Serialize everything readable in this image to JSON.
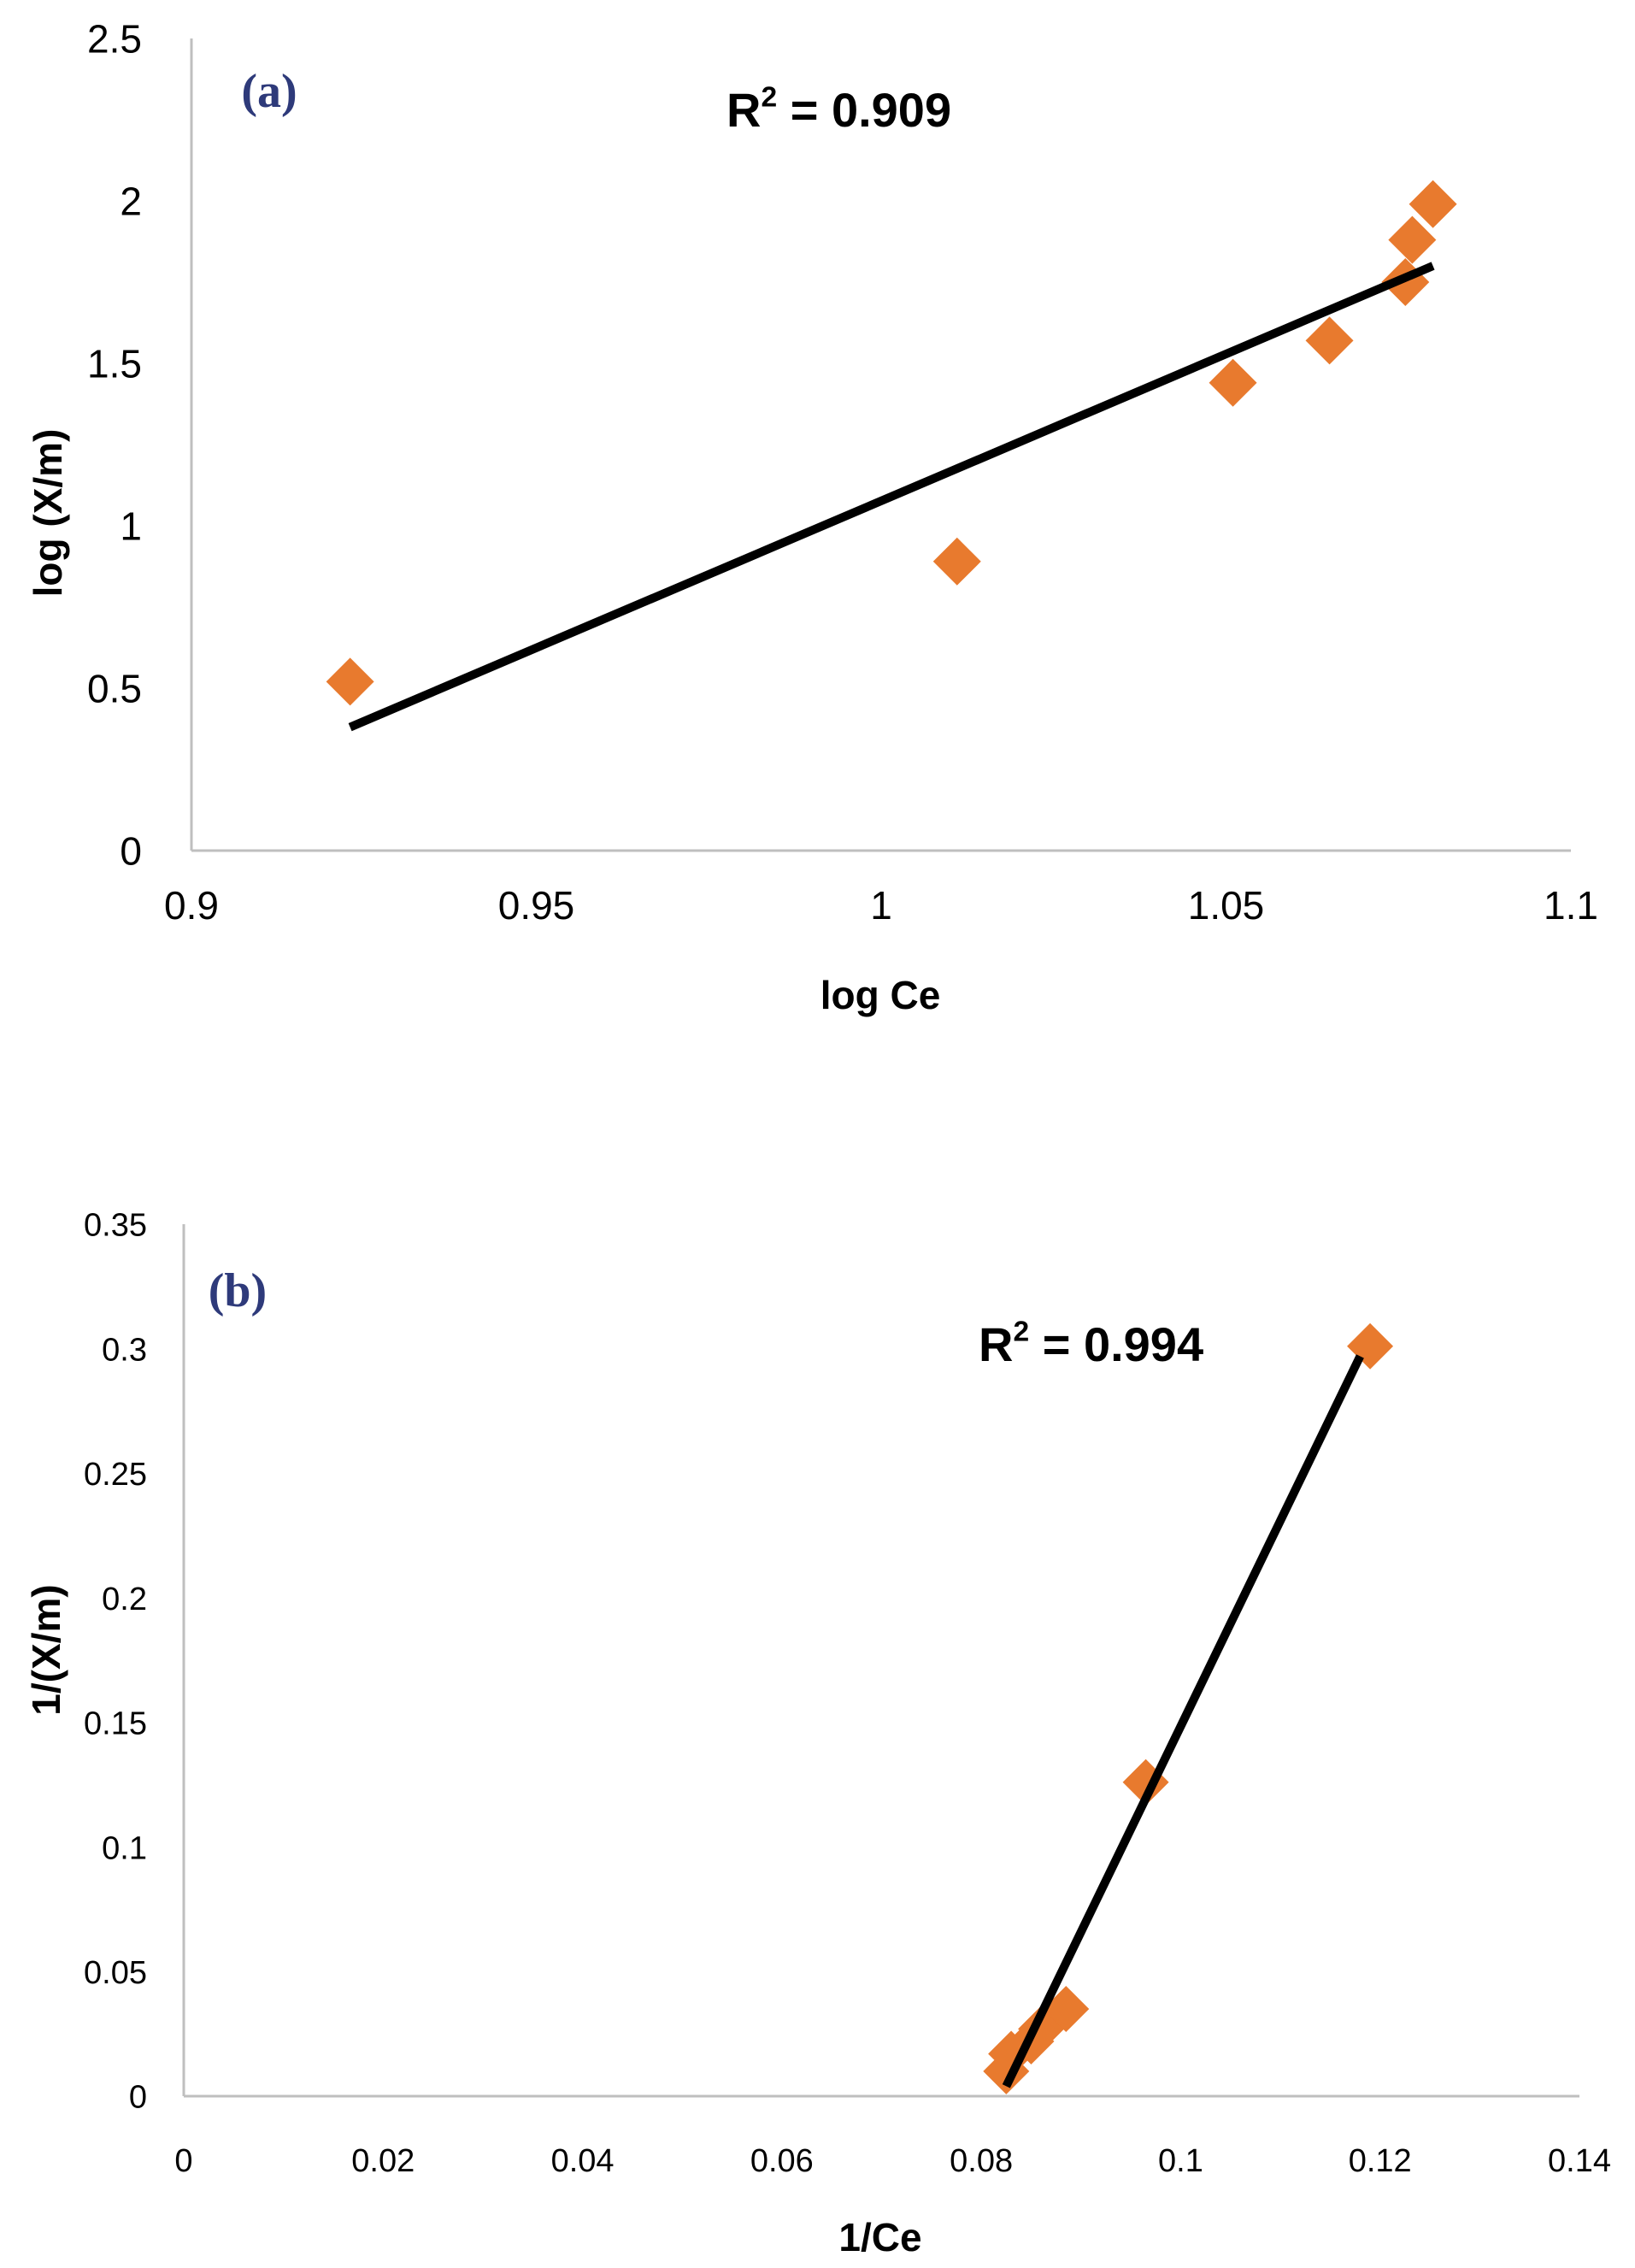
{
  "chart_data": [
    {
      "type": "scatter",
      "panel_label": "(a)",
      "xlabel": "log Ce",
      "ylabel": "log (X/m)",
      "xlim": [
        0.9,
        1.1
      ],
      "ylim": [
        0,
        2.5
      ],
      "x_ticks": [
        "0.9",
        "0.95",
        "1",
        "1.05",
        "1.1"
      ],
      "y_ticks": [
        "0",
        "0.5",
        "1",
        "1.5",
        "2",
        "2.5"
      ],
      "series": [
        {
          "marker": "diamond",
          "color": "#e87a2e",
          "points": [
            {
              "x": 0.923,
              "y": 0.52
            },
            {
              "x": 1.011,
              "y": 0.89
            },
            {
              "x": 1.051,
              "y": 1.44
            },
            {
              "x": 1.065,
              "y": 1.57
            },
            {
              "x": 1.076,
              "y": 1.75
            },
            {
              "x": 1.077,
              "y": 1.88
            },
            {
              "x": 1.08,
              "y": 1.99
            }
          ]
        }
      ],
      "trendline": {
        "color": "#000000",
        "x": [
          0.923,
          1.08
        ],
        "y": [
          0.38,
          1.8
        ]
      },
      "annotation": {
        "prefix": "R",
        "sup": "2",
        "suffix": " = 0.909"
      },
      "grid": false
    },
    {
      "type": "scatter",
      "panel_label": "(b)",
      "xlabel": "1/Ce",
      "ylabel": "1/(X/m)",
      "xlim": [
        0,
        0.14
      ],
      "ylim": [
        0,
        0.35
      ],
      "x_ticks": [
        "0",
        "0.02",
        "0.04",
        "0.06",
        "0.08",
        "0.1",
        "0.12",
        "0.14"
      ],
      "y_ticks": [
        "0",
        "0.05",
        "0.1",
        "0.15",
        "0.2",
        "0.25",
        "0.3",
        "0.35"
      ],
      "series": [
        {
          "marker": "diamond",
          "color": "#e87a2e",
          "points": [
            {
              "x": 0.0825,
              "y": 0.01
            },
            {
              "x": 0.083,
              "y": 0.017
            },
            {
              "x": 0.085,
              "y": 0.022
            },
            {
              "x": 0.086,
              "y": 0.027
            },
            {
              "x": 0.0885,
              "y": 0.035
            },
            {
              "x": 0.0965,
              "y": 0.126
            },
            {
              "x": 0.119,
              "y": 0.301
            }
          ]
        }
      ],
      "trendline": {
        "color": "#000000",
        "x": [
          0.0825,
          0.118
        ],
        "y": [
          0.004,
          0.297
        ]
      },
      "annotation": {
        "prefix": "R",
        "sup": "2",
        "suffix": " = 0.994"
      },
      "grid": false
    }
  ]
}
